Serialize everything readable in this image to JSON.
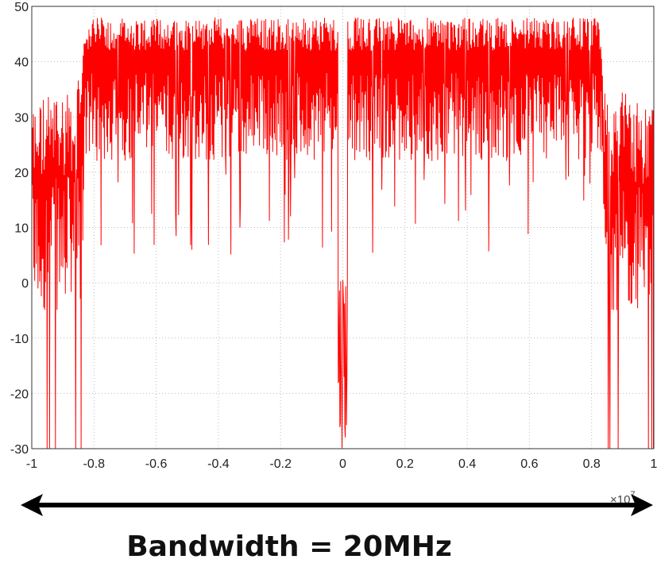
{
  "chart_data": {
    "type": "line",
    "title": "",
    "xlabel": "",
    "ylabel": "",
    "xlim": [
      -1,
      1
    ],
    "ylim": [
      -30,
      50
    ],
    "x_exponent": "×10",
    "x_exponent_power": "7",
    "xticks": [
      "-1",
      "-0.8",
      "-0.6",
      "-0.4",
      "-0.2",
      "0",
      "0.2",
      "0.4",
      "0.6",
      "0.8",
      "1"
    ],
    "yticks": [
      "50",
      "40",
      "30",
      "20",
      "10",
      "0",
      "-10",
      "-20",
      "-30"
    ],
    "grid": true,
    "series_color": "#ff0000",
    "series": [
      {
        "description_values": "noisy spectrum: passband ~20-48 dB for |x| between 0.01 and 0.83 (x1e7), stopband ~-5 to 35 dB outside, deep notch to -30 at x=0",
        "envelope": [
          {
            "x": -1.0,
            "low": -5,
            "high": 33
          },
          {
            "x": -0.84,
            "low": -5,
            "high": 37
          },
          {
            "x": -0.83,
            "low": 20,
            "high": 47
          },
          {
            "x": -0.02,
            "low": 20,
            "high": 47
          },
          {
            "x": 0.0,
            "low": -30,
            "high": 0
          },
          {
            "x": 0.02,
            "low": 20,
            "high": 47
          },
          {
            "x": 0.83,
            "low": 20,
            "high": 47
          },
          {
            "x": 0.84,
            "low": -5,
            "high": 36
          },
          {
            "x": 1.0,
            "low": -5,
            "high": 32
          }
        ]
      }
    ]
  },
  "annotation": {
    "arrow": "double-headed",
    "caption": "Bandwidth  =  20MHz"
  }
}
